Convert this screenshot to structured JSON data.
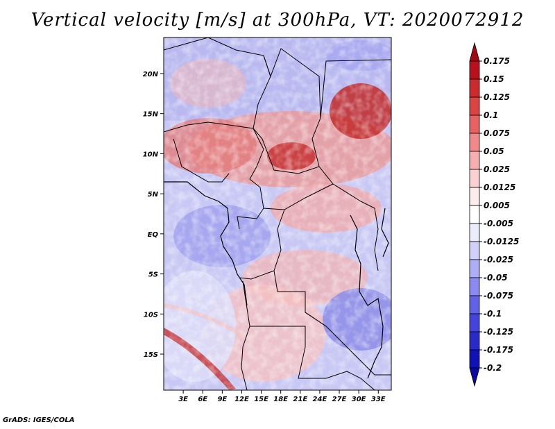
{
  "title": "Vertical velocity [m/s] at 300hPa, VT: 2020072912",
  "credit": "GrADS: IGES/COLA",
  "map": {
    "lat_labels": [
      "20N",
      "15N",
      "10N",
      "5N",
      "EQ",
      "5S",
      "10S",
      "15S"
    ],
    "lon_labels": [
      "3E",
      "6E",
      "9E",
      "12E",
      "15E",
      "18E",
      "21E",
      "24E",
      "27E",
      "30E",
      "33E"
    ],
    "lat_range": [
      -19.5,
      24.5
    ],
    "lon_range": [
      0.0,
      35.0
    ]
  },
  "colorbar": {
    "labels": [
      "0.175",
      "0.15",
      "0.125",
      "0.1",
      "0.075",
      "0.05",
      "0.025",
      "0.0125",
      "0.005",
      "-0.005",
      "-0.0125",
      "-0.025",
      "-0.05",
      "-0.075",
      "-0.1",
      "-0.125",
      "-0.175",
      "-0.2"
    ],
    "colors": [
      "#a00a14",
      "#b8111d",
      "#cb2a2f",
      "#dc4444",
      "#e86262",
      "#f08a8a",
      "#f6aeae",
      "#fbd0d0",
      "#fdecec",
      "#ffffff",
      "#ececfd",
      "#d0d0fb",
      "#aeaef6",
      "#8a8af0",
      "#6262e8",
      "#4444dc",
      "#2a2acb",
      "#1111b8",
      "#0a0aa0"
    ]
  }
}
